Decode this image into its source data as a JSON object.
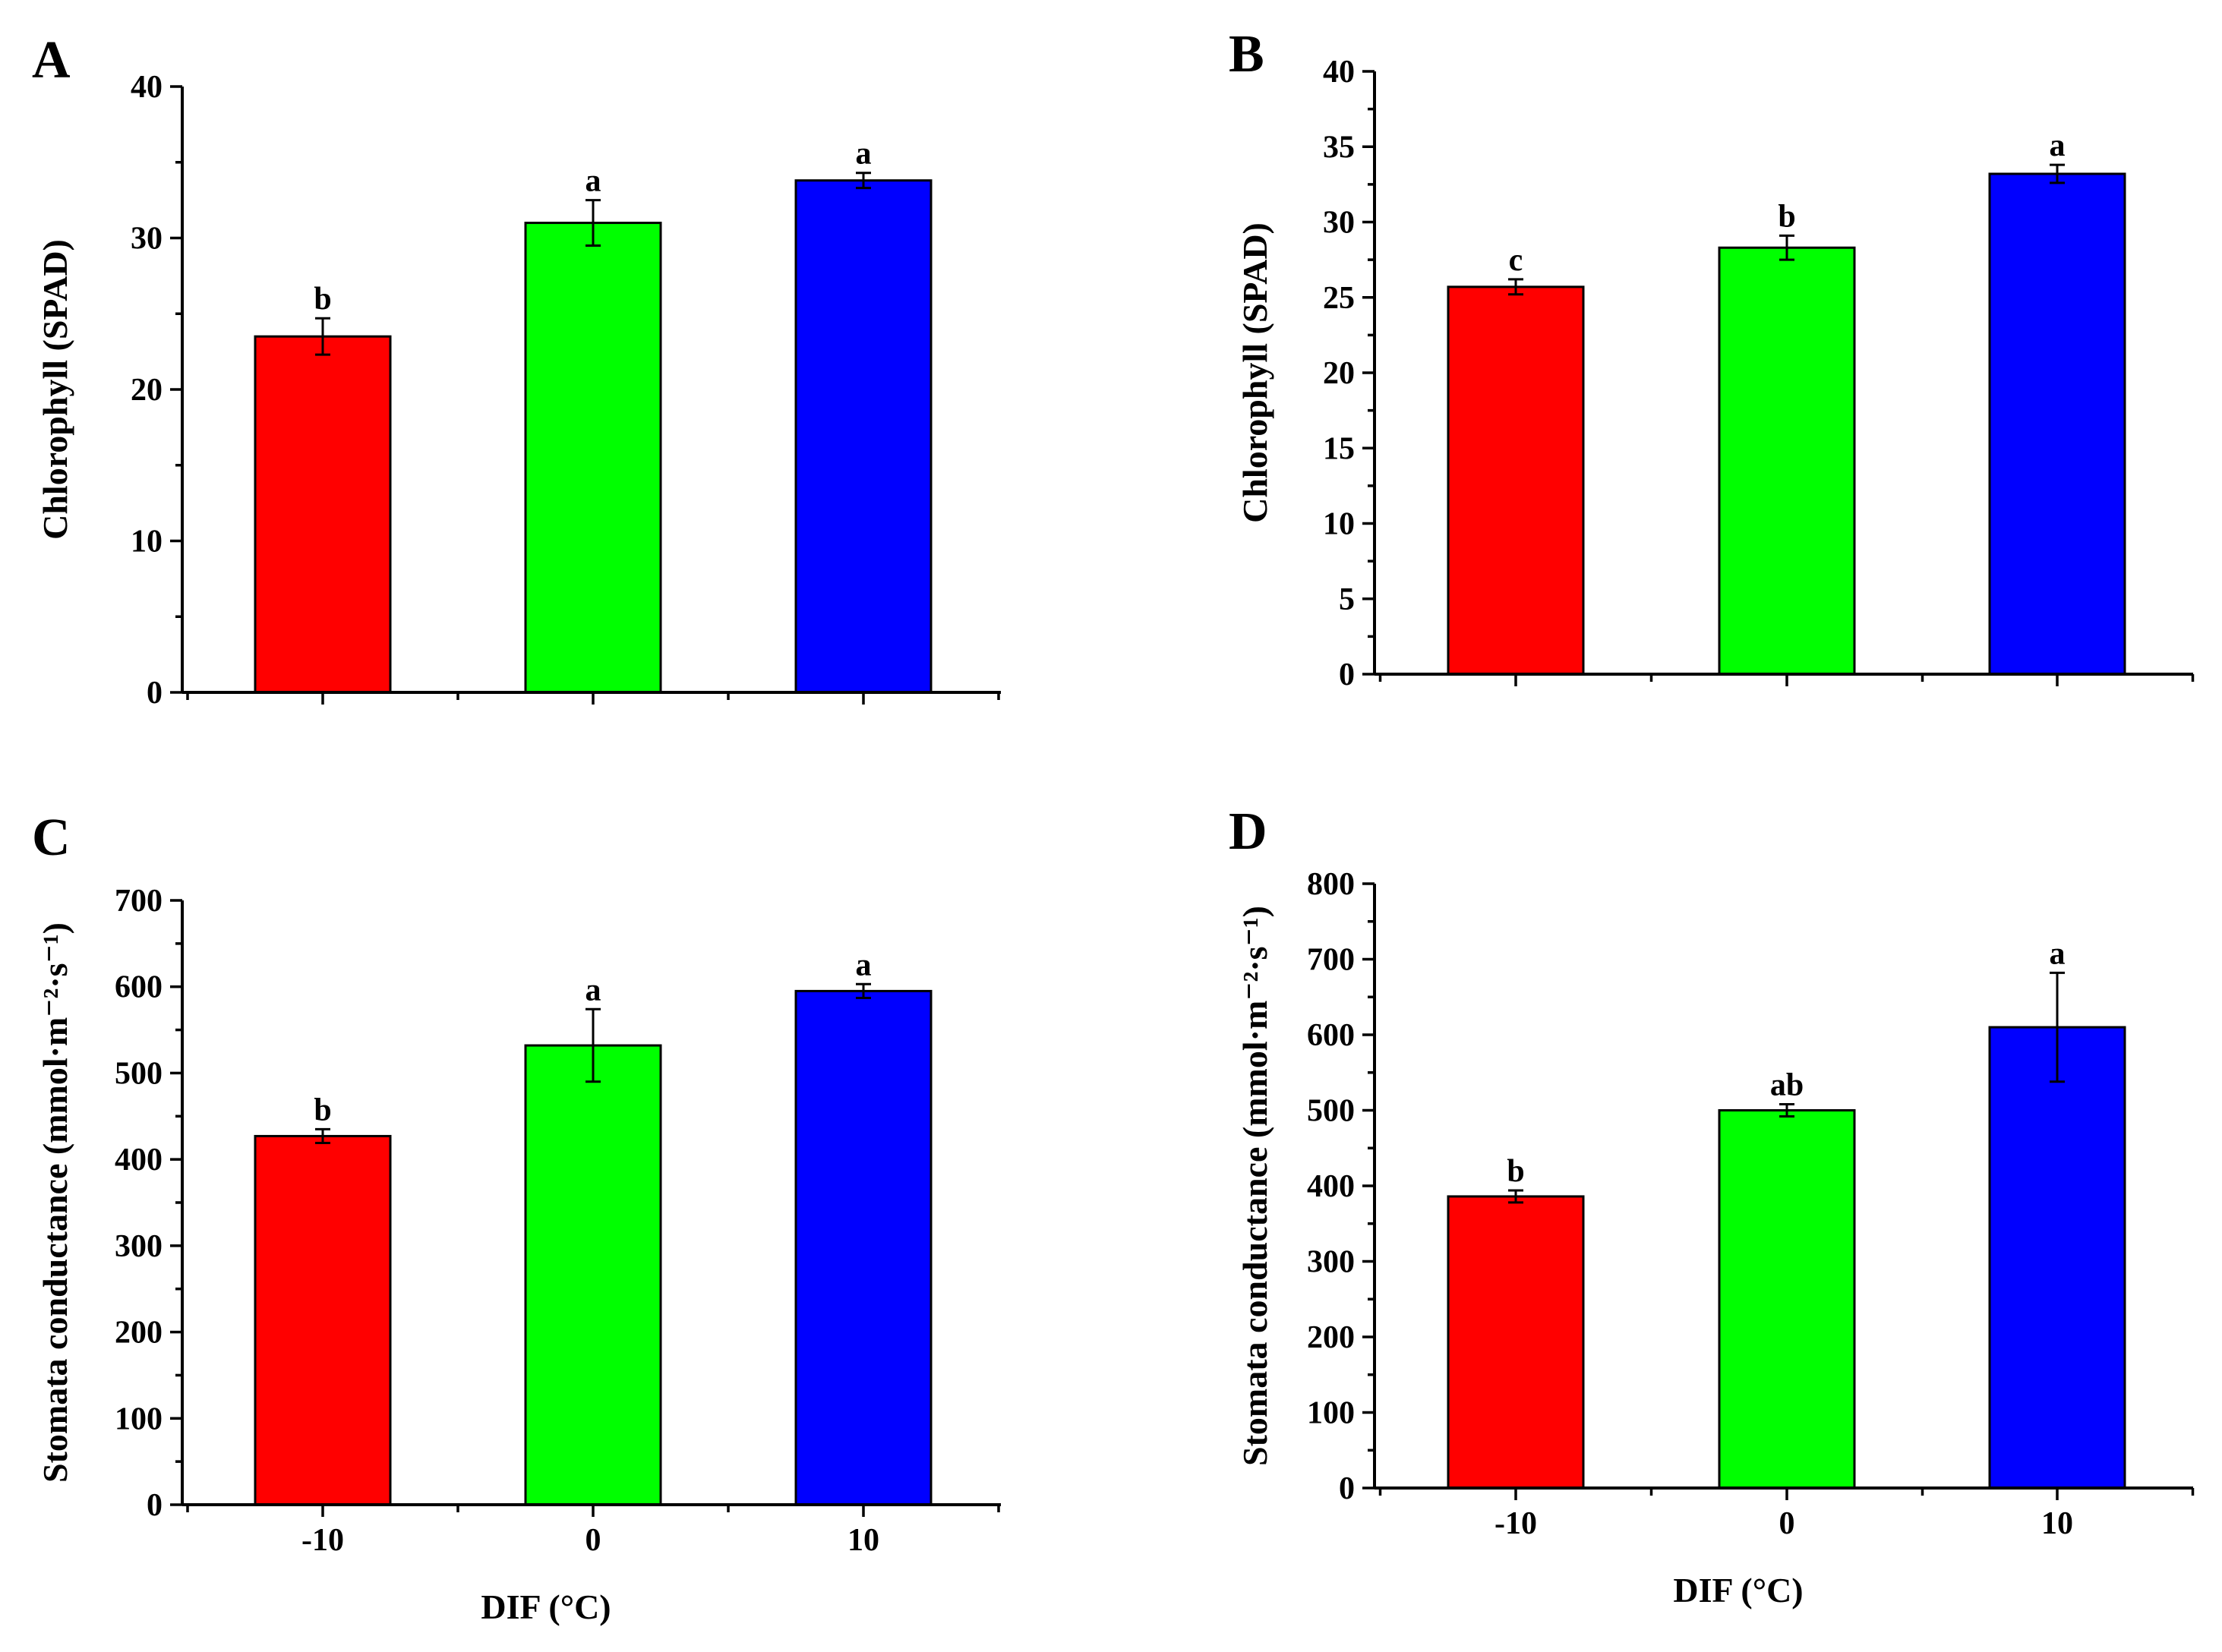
{
  "chart_data": [
    {
      "panel": "A",
      "type": "bar",
      "categories": [
        "-10",
        "0",
        "10"
      ],
      "values": [
        23.5,
        31.0,
        33.8
      ],
      "errors": [
        1.2,
        1.5,
        0.5
      ],
      "significance": [
        "b",
        "a",
        "a"
      ],
      "colors": [
        "#ff0000",
        "#00ff00",
        "#0000ff"
      ],
      "ylabel": "Chlorophyll (SPAD)",
      "xlabel": "",
      "ylim": [
        0,
        40
      ],
      "yticks": [
        0,
        10,
        20,
        30,
        40
      ],
      "yticks_minor": [
        5,
        15,
        25,
        35
      ],
      "show_xtick_labels": false
    },
    {
      "panel": "B",
      "type": "bar",
      "categories": [
        "-10",
        "0",
        "10"
      ],
      "values": [
        25.7,
        28.3,
        33.2
      ],
      "errors": [
        0.5,
        0.8,
        0.6
      ],
      "significance": [
        "c",
        "b",
        "a"
      ],
      "colors": [
        "#ff0000",
        "#00ff00",
        "#0000ff"
      ],
      "ylabel": "Chlorophyll (SPAD)",
      "xlabel": "",
      "ylim": [
        0,
        40
      ],
      "yticks": [
        0,
        5,
        10,
        15,
        20,
        25,
        30,
        35,
        40
      ],
      "yticks_minor": [
        2.5,
        7.5,
        12.5,
        17.5,
        22.5,
        27.5,
        32.5,
        37.5
      ],
      "show_xtick_labels": false
    },
    {
      "panel": "C",
      "type": "bar",
      "categories": [
        "-10",
        "0",
        "10"
      ],
      "values": [
        427,
        532,
        595
      ],
      "errors": [
        8,
        42,
        8
      ],
      "significance": [
        "b",
        "a",
        "a"
      ],
      "colors": [
        "#ff0000",
        "#00ff00",
        "#0000ff"
      ],
      "ylabel": "Stomata conductance (mmol·m⁻²·s⁻¹)",
      "xlabel": "DIF (°C)",
      "ylim": [
        0,
        700
      ],
      "yticks": [
        0,
        100,
        200,
        300,
        400,
        500,
        600,
        700
      ],
      "yticks_minor": [
        50,
        150,
        250,
        350,
        450,
        550,
        650
      ],
      "show_xtick_labels": true
    },
    {
      "panel": "D",
      "type": "bar",
      "categories": [
        "-10",
        "0",
        "10"
      ],
      "values": [
        386,
        500,
        610
      ],
      "errors": [
        8,
        8,
        72
      ],
      "significance": [
        "b",
        "ab",
        "a"
      ],
      "colors": [
        "#ff0000",
        "#00ff00",
        "#0000ff"
      ],
      "ylabel": "Stomata conductance (mmol·m⁻²·s⁻¹)",
      "xlabel": "DIF (°C)",
      "ylim": [
        0,
        800
      ],
      "yticks": [
        0,
        100,
        200,
        300,
        400,
        500,
        600,
        700,
        800
      ],
      "yticks_minor": [
        50,
        150,
        250,
        350,
        450,
        550,
        650,
        750
      ],
      "show_xtick_labels": true
    }
  ]
}
